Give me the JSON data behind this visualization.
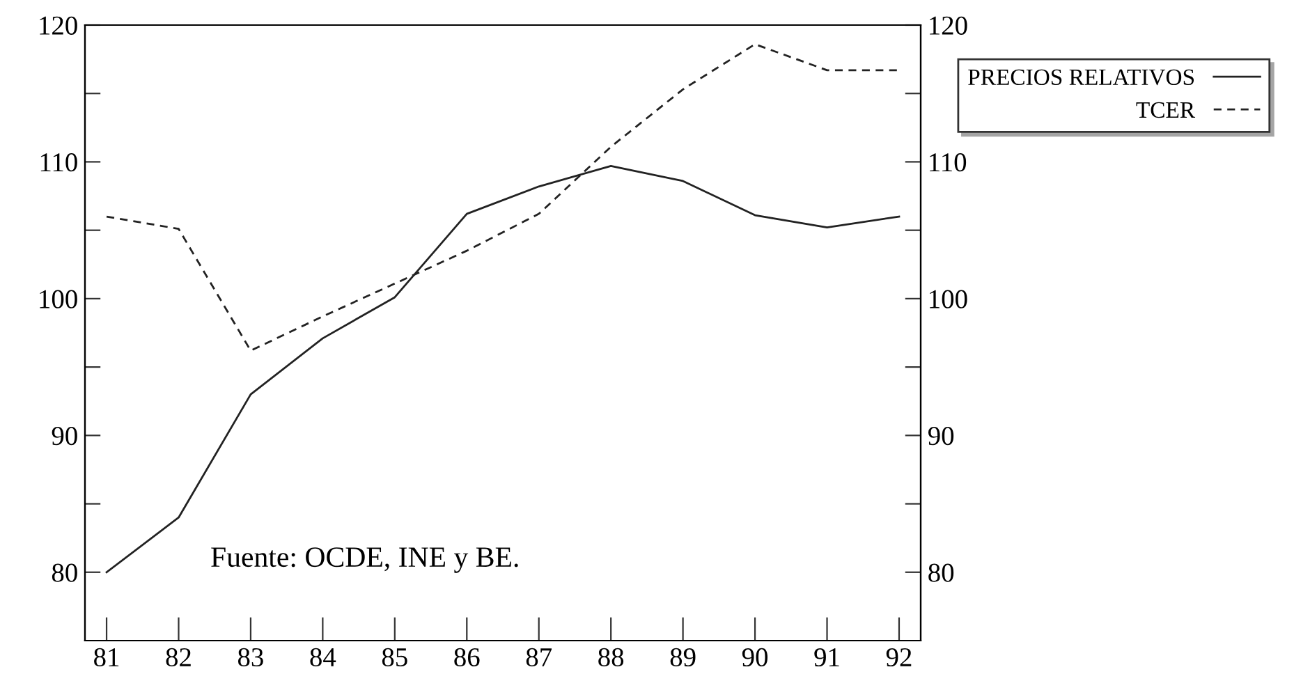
{
  "chart_data": {
    "type": "line",
    "x": [
      81,
      82,
      83,
      84,
      85,
      86,
      87,
      88,
      89,
      90,
      91,
      92
    ],
    "series": [
      {
        "name": "PRECIOS RELATIVOS",
        "color": "#222222",
        "line_style": "solid",
        "values": [
          80.0,
          84.0,
          93.0,
          97.1,
          100.1,
          106.2,
          108.2,
          109.7,
          108.6,
          106.1,
          105.2,
          106.0
        ]
      },
      {
        "name": "TCER",
        "color": "#222222",
        "line_style": "dashed",
        "values": [
          106.0,
          105.1,
          96.2,
          98.7,
          101.1,
          103.5,
          106.2,
          111.1,
          115.3,
          118.6,
          116.7,
          116.7
        ]
      }
    ],
    "xlim": [
      80.7,
      92.3
    ],
    "xticks": [
      81,
      82,
      83,
      84,
      85,
      86,
      87,
      88,
      89,
      90,
      91,
      92
    ],
    "ylim": [
      75,
      120
    ],
    "yticks": [
      80,
      {
        "value": 85,
        "label": null
      },
      90,
      {
        "value": 95,
        "label": null
      },
      100,
      {
        "value": 105,
        "label": null
      },
      110,
      {
        "value": 115,
        "label": null
      },
      120
    ],
    "y2lim": [
      75,
      120
    ],
    "y2ticks": [
      80,
      {
        "value": 85,
        "label": null
      },
      90,
      {
        "value": 95,
        "label": null
      },
      100,
      {
        "value": 105,
        "label": null
      },
      110,
      {
        "value": 115,
        "label": null
      },
      120
    ],
    "annotations": [
      "Fuente: OCDE, INE y BE."
    ],
    "grid": false,
    "legend": "top right",
    "marker": "none"
  }
}
